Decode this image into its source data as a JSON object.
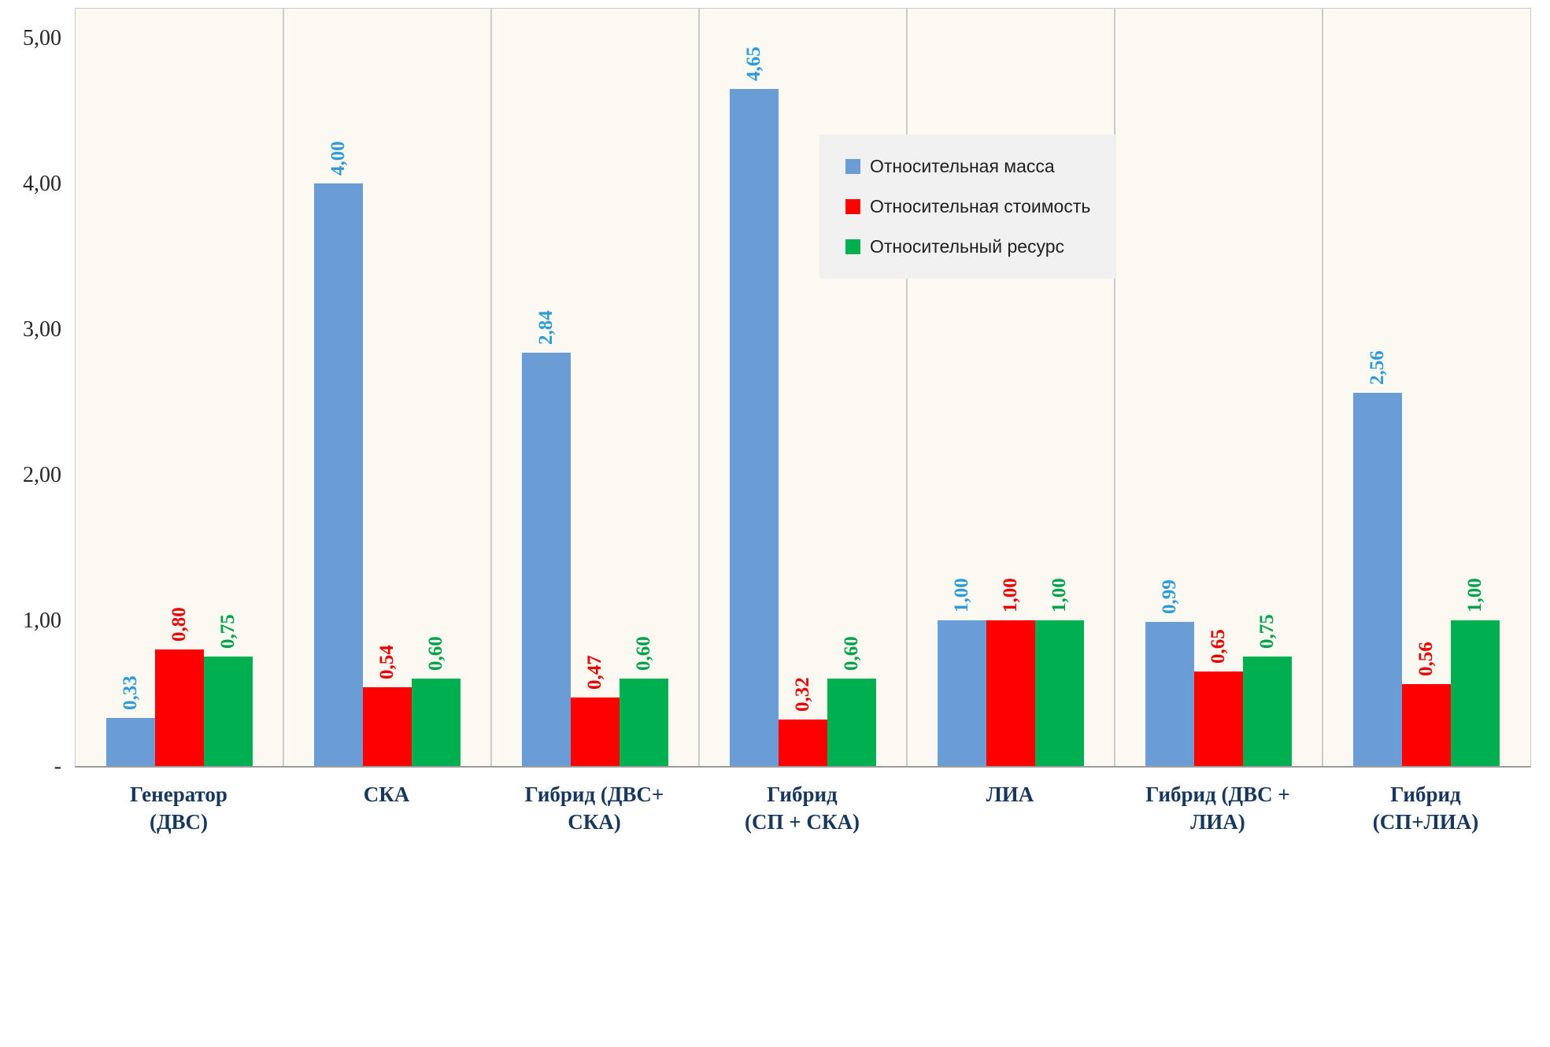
{
  "chart_data": {
    "type": "bar",
    "title": "",
    "xlabel": "",
    "ylabel": "",
    "grid": "vertical-only",
    "plot_background": "#FBF9F2",
    "categories": [
      {
        "lines": [
          "Генератор",
          "(ДВС)"
        ]
      },
      {
        "lines": [
          "СКА"
        ]
      },
      {
        "lines": [
          "Гибрид (ДВС+",
          "СКА)"
        ]
      },
      {
        "lines": [
          "Гибрид",
          "(СП + СКА)"
        ]
      },
      {
        "lines": [
          "ЛИА"
        ]
      },
      {
        "lines": [
          "Гибрид (ДВС +",
          "ЛИА)"
        ]
      },
      {
        "lines": [
          "Гибрид",
          "(СП+ЛИА)"
        ]
      }
    ],
    "series": [
      {
        "name": "Относительная масса",
        "bar_color": "#6A9DD6",
        "label_color": "#2E9AD6",
        "values": [
          0.33,
          4.0,
          2.84,
          4.65,
          1.0,
          0.99,
          2.56
        ],
        "labels": [
          "0,33",
          "4,00",
          "2,84",
          "4,65",
          "1,00",
          "0,99",
          "2,56"
        ]
      },
      {
        "name": "Относительная стоимость",
        "bar_color": "#FE0000",
        "label_color": "#E60000",
        "values": [
          0.8,
          0.54,
          0.47,
          0.32,
          1.0,
          0.65,
          0.56
        ],
        "labels": [
          "0,80",
          "0,54",
          "0,47",
          "0,32",
          "1,00",
          "0,65",
          "0,56"
        ]
      },
      {
        "name": "Относительный ресурс",
        "bar_color": "#00B050",
        "label_color": "#00A14B",
        "values": [
          0.75,
          0.6,
          0.6,
          0.6,
          1.0,
          0.75,
          1.0
        ],
        "labels": [
          "0,75",
          "0,60",
          "0,60",
          "0,60",
          "1,00",
          "0,75",
          "1,00"
        ]
      }
    ],
    "y_axis": {
      "max": 5.2,
      "ticks": [
        {
          "value": 0,
          "label": "-"
        },
        {
          "value": 1,
          "label": "1,00"
        },
        {
          "value": 2,
          "label": "2,00"
        },
        {
          "value": 3,
          "label": "3,00"
        },
        {
          "value": 4,
          "label": "4,00"
        },
        {
          "value": 5,
          "label": "5,00"
        }
      ]
    },
    "legend": {
      "position": "inside-top-right",
      "background": "#F1F1F1",
      "items": [
        "Относительная масса",
        "Относительная стоимость",
        "Относительный ресурс"
      ]
    }
  }
}
